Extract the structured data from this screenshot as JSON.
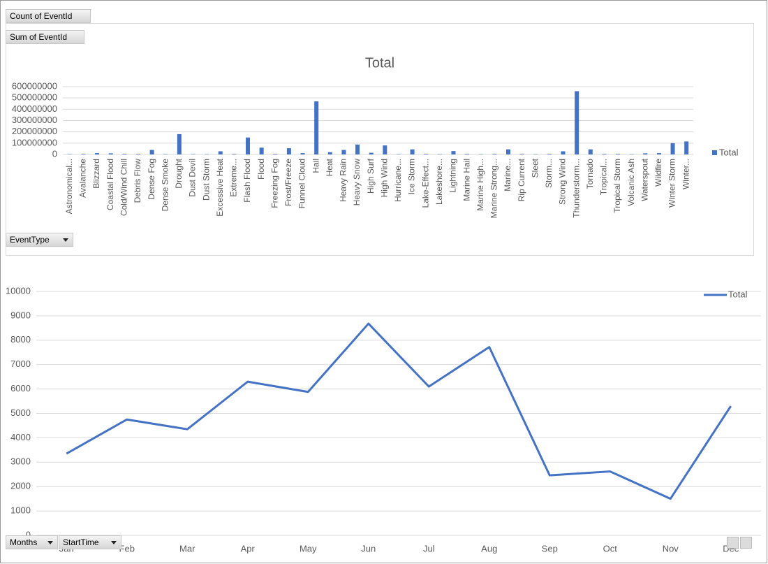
{
  "chart_data": [
    {
      "type": "bar",
      "title": "Total",
      "categories": [
        "Astronomical...",
        "Avalanche",
        "Blizzard",
        "Coastal Flood",
        "Cold/Wind Chill",
        "Debris Flow",
        "Dense Fog",
        "Dense Smoke",
        "Drought",
        "Dust Devil",
        "Dust Storm",
        "Excessive Heat",
        "Extreme...",
        "Flash Flood",
        "Flood",
        "Freezing Fog",
        "Frost/Freeze",
        "Funnel Cloud",
        "Hail",
        "Heat",
        "Heavy Rain",
        "Heavy Snow",
        "High Surf",
        "High Wind",
        "Hurricane...",
        "Ice Storm",
        "Lake-Effect...",
        "Lakeshore...",
        "Lightning",
        "Marine Hail",
        "Marine High...",
        "Marine Strong...",
        "Marine...",
        "Rip Current",
        "Sleet",
        "Storm...",
        "Strong Wind",
        "Thunderstorm...",
        "Tornado",
        "Tropical...",
        "Tropical Storm",
        "Volcanic Ash",
        "Waterspout",
        "Wildfire",
        "Winter Storm",
        "Winter..."
      ],
      "series": [
        {
          "name": "Total",
          "color": "#4472c4",
          "values": [
            3000000,
            5000000,
            12000000,
            10000000,
            5000000,
            5000000,
            40000000,
            3000000,
            180000000,
            3000000,
            3000000,
            28000000,
            5000000,
            150000000,
            60000000,
            5000000,
            55000000,
            12000000,
            470000000,
            20000000,
            40000000,
            88000000,
            15000000,
            80000000,
            3000000,
            45000000,
            5000000,
            3000000,
            30000000,
            5000000,
            3000000,
            5000000,
            45000000,
            5000000,
            3000000,
            5000000,
            28000000,
            560000000,
            45000000,
            5000000,
            5000000,
            3000000,
            10000000,
            12000000,
            100000000,
            115000000
          ]
        }
      ],
      "ylim": [
        0,
        600000000
      ],
      "yticks": [
        0,
        100000000,
        200000000,
        300000000,
        400000000,
        500000000,
        600000000
      ],
      "grid": true,
      "legend": "right"
    },
    {
      "type": "line",
      "categories": [
        "Jan",
        "Feb",
        "Mar",
        "Apr",
        "May",
        "Jun",
        "Jul",
        "Aug",
        "Sep",
        "Oct",
        "Nov",
        "Dec"
      ],
      "series": [
        {
          "name": "Total",
          "color": "#4472c4",
          "values": [
            3350,
            4750,
            4350,
            6300,
            5880,
            8680,
            6100,
            7720,
            2460,
            2620,
            1500,
            5300
          ]
        }
      ],
      "ylim": [
        0,
        10000
      ],
      "yticks": [
        0,
        1000,
        2000,
        3000,
        4000,
        5000,
        6000,
        7000,
        8000,
        9000,
        10000
      ],
      "grid": true,
      "legend": "top-right"
    }
  ],
  "ui": {
    "count_button": "Count of EventId",
    "sum_button": "Sum of EventId",
    "event_type_button": "EventType",
    "months_button": "Months",
    "start_time_button": "StartTime"
  }
}
